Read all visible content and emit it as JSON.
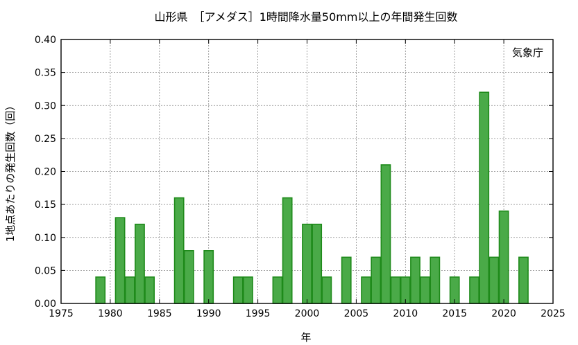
{
  "chart_data": {
    "type": "bar",
    "title": "山形県　［アメダス］1時間降水量50mm以上の年間発生回数",
    "xlabel": "年",
    "ylabel": "1地点あたりの発生回数（回）",
    "annotation": "気象庁",
    "xlim": [
      1975,
      2025
    ],
    "ylim": [
      0,
      0.4
    ],
    "x_ticks": [
      "1975",
      "1980",
      "1985",
      "1990",
      "1995",
      "2000",
      "2005",
      "2010",
      "2015",
      "2020",
      "2025"
    ],
    "y_ticks": [
      "0.00",
      "0.05",
      "0.10",
      "0.15",
      "0.20",
      "0.25",
      "0.30",
      "0.35",
      "0.40"
    ],
    "grid": true,
    "bar_color": "#4aaa48",
    "bar_edge_color": "#1e8a1a",
    "x": [
      1976,
      1977,
      1978,
      1979,
      1980,
      1981,
      1982,
      1983,
      1984,
      1985,
      1986,
      1987,
      1988,
      1989,
      1990,
      1991,
      1992,
      1993,
      1994,
      1995,
      1996,
      1997,
      1998,
      1999,
      2000,
      2001,
      2002,
      2003,
      2004,
      2005,
      2006,
      2007,
      2008,
      2009,
      2010,
      2011,
      2012,
      2013,
      2014,
      2015,
      2016,
      2017,
      2018,
      2019,
      2020,
      2021,
      2022
    ],
    "values": [
      0,
      0,
      0,
      0.04,
      0,
      0.13,
      0.04,
      0.12,
      0.04,
      0,
      0,
      0.16,
      0.08,
      0,
      0.08,
      0,
      0,
      0.04,
      0.04,
      0,
      0,
      0.04,
      0.16,
      0,
      0.12,
      0.12,
      0.04,
      0,
      0.07,
      0,
      0.04,
      0.07,
      0.21,
      0.04,
      0.04,
      0.07,
      0.04,
      0.07,
      0,
      0.04,
      0,
      0.04,
      0.32,
      0.07,
      0.14,
      0,
      0.07
    ]
  }
}
